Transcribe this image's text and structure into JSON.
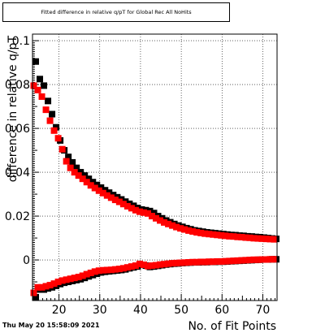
{
  "title": "Fitted difference in relative q/pT for Global Rec All NoHits",
  "footer_timestamp": "Thu May 20 15:58:09 2021",
  "colors": {
    "series_black": "#000000",
    "series_red": "#ff0000",
    "grid": "#000000",
    "background": "#ffffff"
  },
  "chart_data": {
    "type": "scatter",
    "title": "Fitted difference in relative q/pT for Global Rec All NoHits",
    "xlabel": "No. of Fit Points",
    "ylabel": "difference in relative q/pT",
    "xlim": [
      13.5,
      73.5
    ],
    "ylim": [
      -0.0185,
      0.103
    ],
    "xticks": [
      20,
      30,
      40,
      50,
      60,
      70
    ],
    "yticks": [
      0,
      0.02,
      0.04,
      0.06,
      0.08,
      0.1
    ],
    "yticklabels": [
      "0",
      "0.02",
      "0.04",
      "0.06",
      "0.08",
      "0.1"
    ],
    "grid": true,
    "marker": "square",
    "x": [
      14,
      15,
      16,
      17,
      18,
      19,
      20,
      21,
      22,
      23,
      24,
      25,
      26,
      27,
      28,
      29,
      30,
      31,
      32,
      33,
      34,
      35,
      36,
      37,
      38,
      39,
      40,
      41,
      42,
      43,
      44,
      45,
      46,
      47,
      48,
      49,
      50,
      51,
      52,
      53,
      54,
      55,
      56,
      57,
      58,
      59,
      60,
      61,
      62,
      63,
      64,
      65,
      66,
      67,
      68,
      69,
      70,
      71,
      72,
      73
    ],
    "series": [
      {
        "color": "#000000",
        "values": [
          0.0905,
          0.0825,
          0.0795,
          0.0725,
          0.0665,
          0.0605,
          0.0545,
          0.05,
          0.047,
          0.0445,
          0.042,
          0.04,
          0.0385,
          0.037,
          0.0355,
          0.0342,
          0.033,
          0.0318,
          0.0307,
          0.0296,
          0.0286,
          0.0276,
          0.0266,
          0.0256,
          0.0247,
          0.0237,
          0.023,
          0.0227,
          0.0223,
          0.0214,
          0.02,
          0.019,
          0.018,
          0.0172,
          0.0164,
          0.0157,
          0.0151,
          0.0145,
          0.014,
          0.0135,
          0.0132,
          0.0129,
          0.0126,
          0.0124,
          0.0122,
          0.012,
          0.0118,
          0.0116,
          0.0114,
          0.0113,
          0.0111,
          0.011,
          0.0108,
          0.0107,
          0.0105,
          0.0104,
          0.0102,
          0.01,
          0.0098,
          0.0096
        ]
      },
      {
        "color": "#ff0000",
        "values": [
          0.0795,
          0.0775,
          0.0745,
          0.0685,
          0.0635,
          0.059,
          0.0555,
          0.0505,
          0.045,
          0.042,
          0.04,
          0.0385,
          0.037,
          0.0355,
          0.034,
          0.0328,
          0.0316,
          0.0305,
          0.0294,
          0.0284,
          0.0274,
          0.0265,
          0.0255,
          0.0245,
          0.0236,
          0.0227,
          0.022,
          0.0216,
          0.0212,
          0.02,
          0.019,
          0.018,
          0.0171,
          0.0164,
          0.0157,
          0.015,
          0.0144,
          0.0139,
          0.0134,
          0.013,
          0.0126,
          0.0123,
          0.012,
          0.0118,
          0.0116,
          0.0114,
          0.0112,
          0.011,
          0.0108,
          0.0107,
          0.0105,
          0.0104,
          0.0102,
          0.0101,
          0.0099,
          0.0098,
          0.0097,
          0.0096,
          0.0095,
          0.0094
        ]
      },
      {
        "color": "#000000",
        "values": [
          -0.017,
          -0.0135,
          -0.0135,
          -0.013,
          -0.0125,
          -0.0118,
          -0.011,
          -0.0104,
          -0.01,
          -0.0096,
          -0.0092,
          -0.0088,
          -0.0082,
          -0.0075,
          -0.0069,
          -0.0063,
          -0.0057,
          -0.0054,
          -0.0052,
          -0.005,
          -0.0048,
          -0.0046,
          -0.0043,
          -0.0038,
          -0.0034,
          -0.003,
          -0.0022,
          -0.0026,
          -0.0032,
          -0.003,
          -0.0027,
          -0.0024,
          -0.0021,
          -0.0019,
          -0.0017,
          -0.0016,
          -0.0014,
          -0.0013,
          -0.0012,
          -0.0011,
          -0.0011,
          -0.001,
          -0.001,
          -0.0009,
          -0.0009,
          -0.0008,
          -0.0008,
          -0.0007,
          -0.0006,
          -0.0005,
          -0.0004,
          -0.0003,
          -0.0002,
          -0.0001,
          0.0,
          0.0001,
          0.0002,
          0.0002,
          0.0003,
          0.0003
        ]
      },
      {
        "color": "#ff0000",
        "values": [
          -0.015,
          -0.0125,
          -0.0125,
          -0.012,
          -0.0115,
          -0.0108,
          -0.01,
          -0.0094,
          -0.009,
          -0.0086,
          -0.0082,
          -0.0078,
          -0.0072,
          -0.0065,
          -0.0059,
          -0.0053,
          -0.0049,
          -0.0047,
          -0.0046,
          -0.0045,
          -0.0043,
          -0.0041,
          -0.0038,
          -0.0034,
          -0.003,
          -0.0026,
          -0.0018,
          -0.0022,
          -0.0028,
          -0.0026,
          -0.0024,
          -0.0021,
          -0.0019,
          -0.0017,
          -0.0015,
          -0.0014,
          -0.0013,
          -0.0012,
          -0.0011,
          -0.001,
          -0.001,
          -0.0009,
          -0.0009,
          -0.0008,
          -0.0008,
          -0.0007,
          -0.0007,
          -0.0006,
          -0.0005,
          -0.0004,
          -0.0003,
          -0.0002,
          -0.0001,
          0.0,
          0.0001,
          0.0001,
          0.0002,
          0.0002,
          0.0003,
          0.0003
        ]
      }
    ]
  }
}
